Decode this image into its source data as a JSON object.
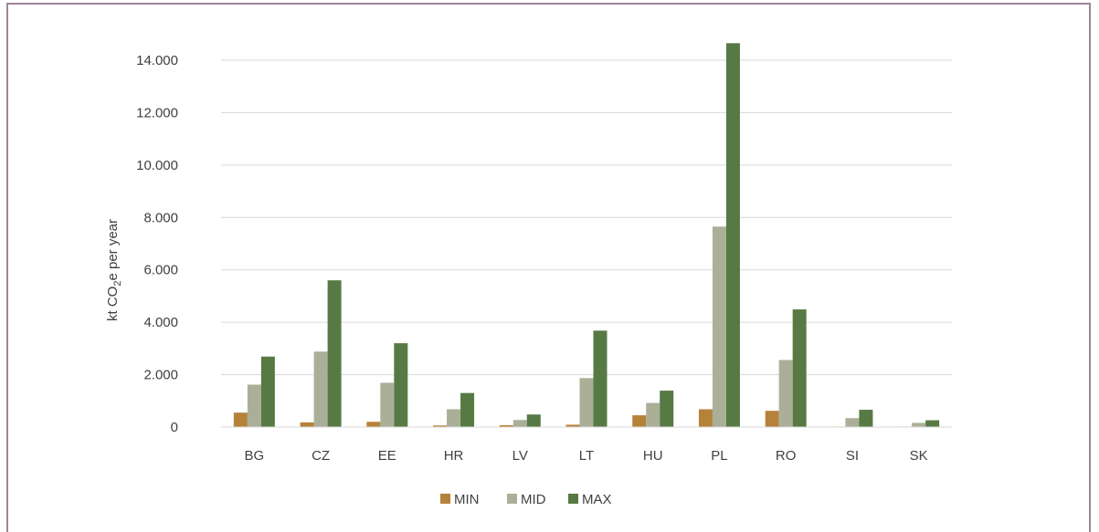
{
  "chart_data": {
    "type": "bar",
    "ylabel": {
      "prefix": "kt CO",
      "subscript": "2",
      "suffix": "e per year"
    },
    "ylim": [
      0,
      14000
    ],
    "yticks": [
      0,
      2000,
      4000,
      6000,
      8000,
      10000,
      12000,
      14000
    ],
    "ytick_labels": [
      "0",
      "2.000",
      "4.000",
      "6.000",
      "8.000",
      "10.000",
      "12.000",
      "14.000"
    ],
    "grid": true,
    "legend_position": "bottom",
    "categories": [
      "BG",
      "CZ",
      "EE",
      "HR",
      "LV",
      "LT",
      "HU",
      "PL",
      "RO",
      "SI",
      "SK"
    ],
    "series": [
      {
        "name": "MIN",
        "color": "#b5823a",
        "values": [
          550,
          180,
          200,
          60,
          70,
          90,
          450,
          680,
          620,
          20,
          20
        ]
      },
      {
        "name": "MID",
        "color": "#abaf98",
        "values": [
          1620,
          2880,
          1690,
          680,
          270,
          1870,
          920,
          7650,
          2560,
          340,
          160
        ]
      },
      {
        "name": "MAX",
        "color": "#577a45",
        "values": [
          2690,
          5600,
          3200,
          1300,
          480,
          3680,
          1390,
          14650,
          4490,
          660,
          260
        ]
      }
    ]
  }
}
